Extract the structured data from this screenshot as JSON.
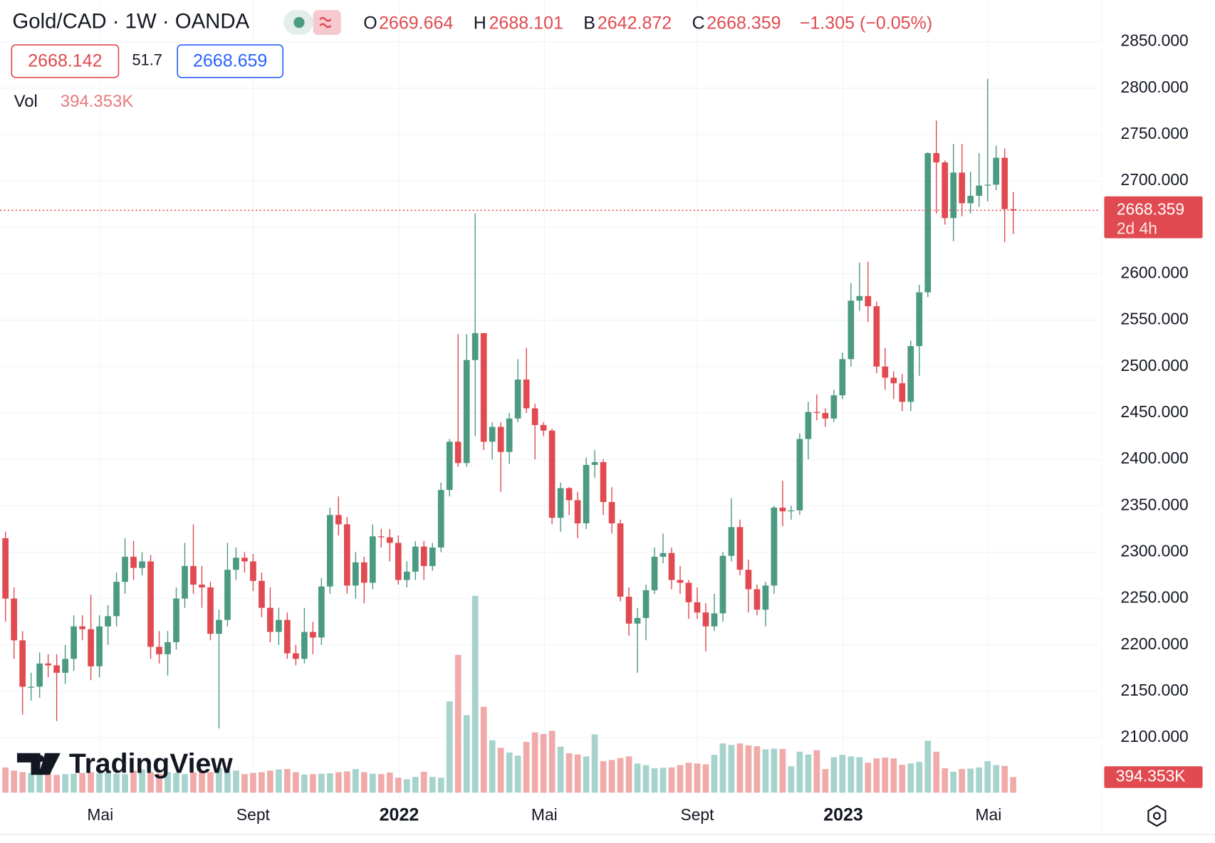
{
  "header": {
    "symbol": "Gold/CAD · 1W · OANDA",
    "o_label": "O",
    "h_label": "H",
    "l_label": "B",
    "c_label": "C",
    "change": "−1.305 (−0.05%)",
    "bid": "2668.142",
    "spread": "51.7",
    "ask": "2668.659",
    "vol_label": "Vol",
    "countdown": "2d 4h",
    "logo": "TradingView"
  },
  "chart_data": {
    "type": "candlestick",
    "open": [
      2315,
      2250,
      2205,
      2155,
      2155,
      2180,
      2178,
      2170,
      2185,
      2220,
      2217,
      2177,
      2220,
      2231,
      2268,
      2295,
      2283,
      2290,
      2198,
      2190,
      2203,
      2250,
      2285,
      2265,
      2262,
      2212,
      2227,
      2281,
      2294,
      2290,
      2269,
      2240,
      2214,
      2227,
      2191,
      2185,
      2214,
      2208,
      2263,
      2340,
      2330,
      2264,
      2289,
      2267,
      2317,
      2316,
      2310,
      2270,
      2279,
      2306,
      2285,
      2305,
      2367,
      2419,
      2396,
      2507,
      2536,
      2419,
      2435,
      2408,
      2444,
      2486,
      2455,
      2437,
      2431,
      2337,
      2369,
      2356,
      2331,
      2394,
      2397,
      2354,
      2331,
      2252,
      2223,
      2229,
      2259,
      2295,
      2299,
      2270,
      2267,
      2246,
      2235,
      2220,
      2234,
      2296,
      2327,
      2281,
      2260,
      2238,
      2264,
      2348,
      2344,
      2345,
      2422,
      2451,
      2450,
      2444,
      2469,
      2508,
      2571,
      2576,
      2565,
      2500,
      2488,
      2482,
      2462,
      2522,
      2580,
      2730,
      2720,
      2660,
      2709,
      2676,
      2684,
      2695,
      2696,
      2725,
      2669.664
    ],
    "high": [
      2322,
      2262,
      2215,
      2170,
      2192,
      2190,
      2190,
      2200,
      2232,
      2232,
      2254,
      2232,
      2243,
      2278,
      2315,
      2312,
      2300,
      2297,
      2215,
      2215,
      2262,
      2310,
      2330,
      2285,
      2268,
      2238,
      2310,
      2305,
      2300,
      2298,
      2278,
      2262,
      2240,
      2235,
      2200,
      2240,
      2225,
      2272,
      2348,
      2360,
      2338,
      2300,
      2295,
      2330,
      2325,
      2325,
      2318,
      2290,
      2312,
      2312,
      2310,
      2375,
      2422,
      2535,
      2535,
      2665,
      2536,
      2440,
      2440,
      2450,
      2508,
      2520,
      2460,
      2440,
      2433,
      2375,
      2370,
      2365,
      2402,
      2410,
      2400,
      2370,
      2335,
      2262,
      2240,
      2265,
      2305,
      2320,
      2305,
      2285,
      2270,
      2262,
      2245,
      2255,
      2300,
      2358,
      2335,
      2292,
      2265,
      2268,
      2350,
      2377,
      2350,
      2428,
      2462,
      2470,
      2455,
      2475,
      2515,
      2590,
      2612,
      2613,
      2570,
      2520,
      2495,
      2492,
      2528,
      2588,
      2731,
      2765,
      2722,
      2740,
      2740,
      2710,
      2730,
      2810,
      2738,
      2735,
      2688.101
    ],
    "low": [
      2225,
      2185,
      2125,
      2140,
      2143,
      2165,
      2118,
      2158,
      2172,
      2205,
      2162,
      2165,
      2200,
      2220,
      2255,
      2270,
      2275,
      2185,
      2180,
      2167,
      2195,
      2240,
      2255,
      2240,
      2205,
      2110,
      2220,
      2270,
      2278,
      2258,
      2230,
      2203,
      2200,
      2185,
      2178,
      2180,
      2190,
      2200,
      2255,
      2318,
      2255,
      2250,
      2245,
      2260,
      2305,
      2290,
      2265,
      2262,
      2270,
      2270,
      2280,
      2300,
      2360,
      2392,
      2392,
      2425,
      2410,
      2400,
      2365,
      2395,
      2440,
      2450,
      2400,
      2425,
      2330,
      2322,
      2340,
      2315,
      2325,
      2380,
      2340,
      2320,
      2247,
      2210,
      2170,
      2205,
      2255,
      2288,
      2260,
      2255,
      2228,
      2228,
      2193,
      2215,
      2225,
      2290,
      2275,
      2235,
      2232,
      2220,
      2255,
      2328,
      2335,
      2340,
      2400,
      2442,
      2435,
      2440,
      2465,
      2500,
      2560,
      2548,
      2493,
      2475,
      2465,
      2452,
      2452,
      2490,
      2575,
      2665,
      2653,
      2635,
      2662,
      2665,
      2672,
      2678,
      2690,
      2634,
      2642.872
    ],
    "close": [
      2250,
      2205,
      2155,
      2155,
      2180,
      2178,
      2170,
      2185,
      2220,
      2217,
      2177,
      2220,
      2231,
      2268,
      2295,
      2283,
      2290,
      2198,
      2190,
      2203,
      2250,
      2285,
      2265,
      2262,
      2212,
      2227,
      2281,
      2294,
      2290,
      2269,
      2240,
      2214,
      2227,
      2191,
      2185,
      2214,
      2208,
      2263,
      2340,
      2330,
      2264,
      2289,
      2267,
      2317,
      2316,
      2310,
      2270,
      2279,
      2306,
      2285,
      2305,
      2367,
      2419,
      2396,
      2507,
      2536,
      2419,
      2435,
      2408,
      2444,
      2486,
      2455,
      2437,
      2431,
      2337,
      2369,
      2356,
      2331,
      2394,
      2397,
      2354,
      2331,
      2252,
      2223,
      2229,
      2259,
      2295,
      2299,
      2270,
      2267,
      2246,
      2235,
      2220,
      2234,
      2296,
      2327,
      2281,
      2260,
      2238,
      2264,
      2348,
      2344,
      2345,
      2422,
      2451,
      2450,
      2444,
      2469,
      2508,
      2571,
      2576,
      2565,
      2500,
      2488,
      2482,
      2462,
      2522,
      2580,
      2730,
      2720,
      2660,
      2709,
      2676,
      2684,
      2695,
      2696,
      2725,
      2669.664,
      2668.359
    ],
    "volume": [
      640,
      560,
      520,
      500,
      480,
      520,
      450,
      470,
      480,
      500,
      520,
      490,
      510,
      480,
      470,
      560,
      590,
      520,
      480,
      520,
      500,
      470,
      510,
      560,
      520,
      620,
      560,
      560,
      470,
      500,
      520,
      560,
      590,
      600,
      520,
      460,
      470,
      480,
      490,
      520,
      540,
      600,
      520,
      480,
      470,
      510,
      380,
      340,
      400,
      530,
      400,
      380,
      2320,
      3500,
      1970,
      5000,
      2180,
      1330,
      1140,
      1020,
      940,
      1290,
      1530,
      1490,
      1570,
      1170,
      1000,
      970,
      920,
      1480,
      800,
      830,
      880,
      920,
      740,
      700,
      620,
      630,
      640,
      700,
      760,
      740,
      720,
      960,
      1250,
      1210,
      1250,
      1200,
      1180,
      1100,
      1120,
      1110,
      670,
      1040,
      970,
      1080,
      600,
      900,
      960,
      920,
      900,
      760,
      870,
      890,
      870,
      710,
      740,
      780,
      1320,
      1040,
      620,
      530,
      600,
      610,
      640,
      800,
      700,
      680,
      394.353
    ],
    "volume_last_label": "394.353K",
    "up_color": "#4c9a82",
    "down_color": "#e04a50",
    "up_volume_color": "#a6d3cc",
    "down_volume_color": "#f1aaaa",
    "ylim": [
      2035,
      2895
    ],
    "yticks": [
      {
        "value": 2100,
        "label": "2100.000"
      },
      {
        "value": 2150,
        "label": "2150.000"
      },
      {
        "value": 2200,
        "label": "2200.000"
      },
      {
        "value": 2250,
        "label": "2250.000"
      },
      {
        "value": 2300,
        "label": "2300.000"
      },
      {
        "value": 2350,
        "label": "2350.000"
      },
      {
        "value": 2400,
        "label": "2400.000"
      },
      {
        "value": 2450,
        "label": "2450.000"
      },
      {
        "value": 2500,
        "label": "2500.000"
      },
      {
        "value": 2550,
        "label": "2550.000"
      },
      {
        "value": 2600,
        "label": "2600.000"
      },
      {
        "value": 2650,
        "label": "2650.000"
      },
      {
        "value": 2700,
        "label": "2700.000"
      },
      {
        "value": 2750,
        "label": "2750.000"
      },
      {
        "value": 2800,
        "label": "2800.000"
      },
      {
        "value": 2850,
        "label": "2850.000"
      }
    ],
    "xlim": [
      -0.64,
      128.2
    ],
    "xticks": [
      {
        "value": 11.1,
        "label": "Mai"
      },
      {
        "value": 29,
        "label": "Sept"
      },
      {
        "value": 46.1,
        "label": "2022"
      },
      {
        "value": 63.1,
        "label": "Mai"
      },
      {
        "value": 81,
        "label": "Sept"
      },
      {
        "value": 98.1,
        "label": "2023"
      },
      {
        "value": 115.1,
        "label": "Mai"
      }
    ],
    "grid": true
  }
}
